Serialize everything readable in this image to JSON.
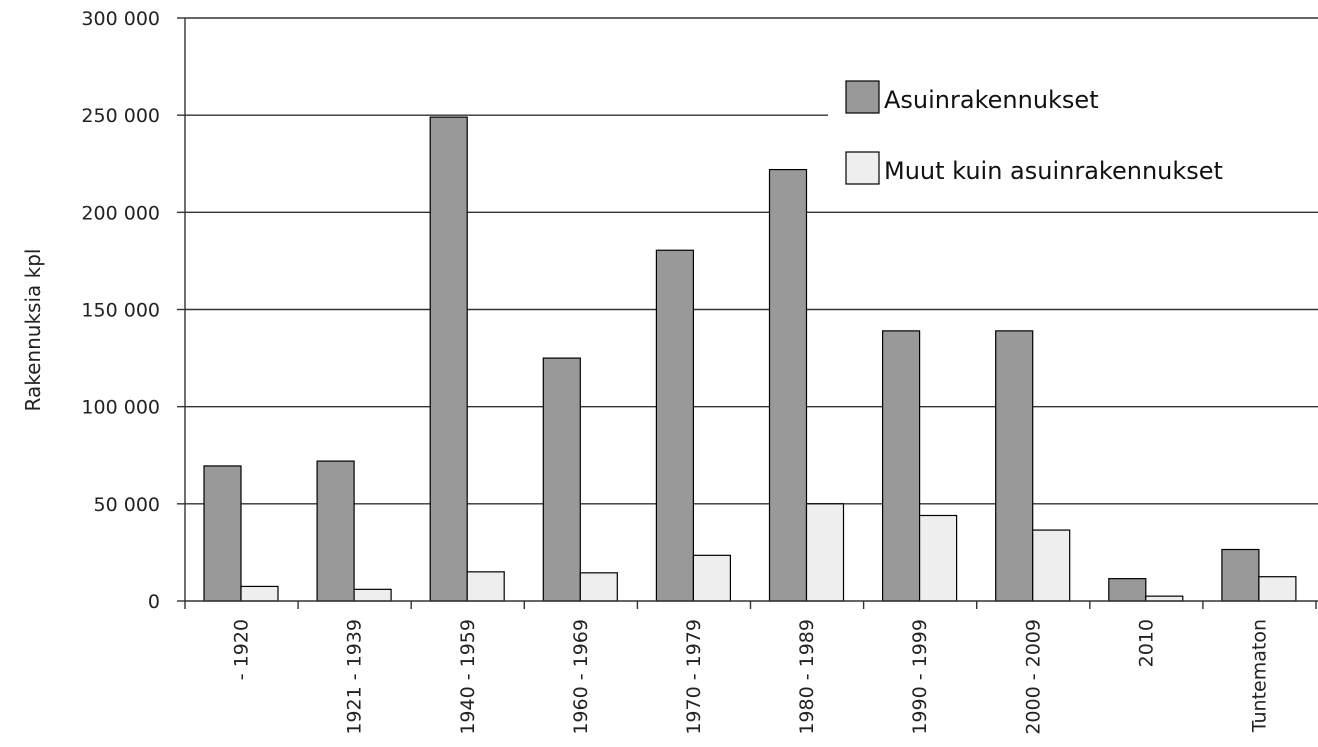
{
  "chart_data": {
    "type": "bar",
    "title": "",
    "xlabel": "",
    "ylabel": "Rakennuksia kpl",
    "ylim": [
      0,
      300000
    ],
    "yticks": [
      0,
      50000,
      100000,
      150000,
      200000,
      250000,
      300000
    ],
    "ytick_labels": [
      "0",
      "50 000",
      "100 000",
      "150 000",
      "200 000",
      "250 000",
      "300 000"
    ],
    "categories": [
      "- 1920",
      "1921 - 1939",
      "1940 - 1959",
      "1960 - 1969",
      "1970 - 1979",
      "1980 - 1989",
      "1990 - 1999",
      "2000 - 2009",
      "2010",
      "Tuntematon"
    ],
    "series": [
      {
        "name": "Asuinrakennukset",
        "color": "#999999",
        "values": [
          69500,
          72000,
          249000,
          125000,
          180500,
          222000,
          139000,
          139000,
          11500,
          26500
        ]
      },
      {
        "name": "Muut kuin asuinrakennukset",
        "color": "#eeeeee",
        "values": [
          7500,
          6000,
          15000,
          14500,
          23500,
          50000,
          44000,
          36500,
          2500,
          12500
        ]
      }
    ],
    "grid": true,
    "legend_position": "top-right"
  }
}
